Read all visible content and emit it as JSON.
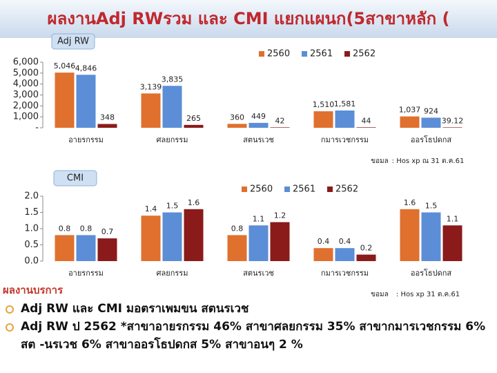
{
  "header": {
    "title": "ผลงานAdj RWรวม และ CMI แยกแผนก(5สาขาหลัก  ("
  },
  "chart_data": [
    {
      "type": "bar",
      "title": "Adj RW",
      "categories": [
        "อายรกรรม",
        "ศลยกรรม",
        "สตนรเวช",
        "กมารเวชกรรม",
        "ออรโธปดกส"
      ],
      "series": [
        {
          "name": "2560",
          "color": "#e0702e",
          "values": [
            5046,
            3139,
            360,
            1510,
            1037
          ],
          "value_labels": [
            "5,046",
            "3,139",
            "360",
            "1,510",
            "1,037"
          ]
        },
        {
          "name": "2561",
          "color": "#5b8ed6",
          "values": [
            4846,
            3835,
            449,
            1581,
            924
          ],
          "value_labels": [
            "4,846",
            "3,835",
            "449",
            "1,581",
            "924"
          ]
        },
        {
          "name": "2562",
          "color": "#8b1a1a",
          "values": [
            348,
            265,
            42,
            44,
            39.12
          ],
          "value_labels": [
            "348",
            "265",
            "42",
            "44",
            "39.12"
          ]
        }
      ],
      "ylim": [
        0,
        6000
      ],
      "yticks": [
        {
          "value": 0,
          "label": "-"
        },
        {
          "value": 1000,
          "label": "1,000"
        },
        {
          "value": 2000,
          "label": "2,000"
        },
        {
          "value": 3000,
          "label": "3,000"
        },
        {
          "value": 4000,
          "label": "4,000"
        },
        {
          "value": 5000,
          "label": "5,000"
        },
        {
          "value": 6000,
          "label": "6,000"
        }
      ],
      "source": [
        "ขอมล",
        ": Hos xp ณ 31 ต.ค.61"
      ]
    },
    {
      "type": "bar",
      "title": "CMI",
      "categories": [
        "อายรกรรม",
        "ศลยกรรม",
        "สตนรเวช",
        "กมารเวชกรรม",
        "ออรโธปดกส"
      ],
      "series": [
        {
          "name": "2560",
          "color": "#e0702e",
          "values": [
            0.8,
            1.4,
            0.8,
            0.4,
            1.6
          ]
        },
        {
          "name": "2561",
          "color": "#5b8ed6",
          "values": [
            0.8,
            1.5,
            1.1,
            0.4,
            1.5
          ]
        },
        {
          "name": "2562",
          "color": "#8b1a1a",
          "values": [
            0.7,
            1.6,
            1.2,
            0.2,
            1.1
          ]
        }
      ],
      "ylim": [
        0,
        2.0
      ],
      "yticks": [
        {
          "value": 0,
          "label": "0.0"
        },
        0.5,
        {
          "value": 1.0,
          "label": "1.0"
        },
        1.5,
        {
          "value": 2.0,
          "label": "2.0"
        }
      ],
      "source": [
        "ขอมล",
        ": Hos xp 31 ต.ค.61"
      ]
    }
  ],
  "notes": {
    "heading": "ผลงานบรการ",
    "bullets": [
      "Adj RW และ CMI มอตราเพมขน สตนรเวช",
      "Adj RW ป 2562 *สาขาอายรกรรม 46% สาขาศลยกรรม 35% สาขากมารเวชกรรม 6% สต -นรเวช 6% สาขาออรโธปดกส 5% สาขาอนๆ 2 %"
    ]
  }
}
